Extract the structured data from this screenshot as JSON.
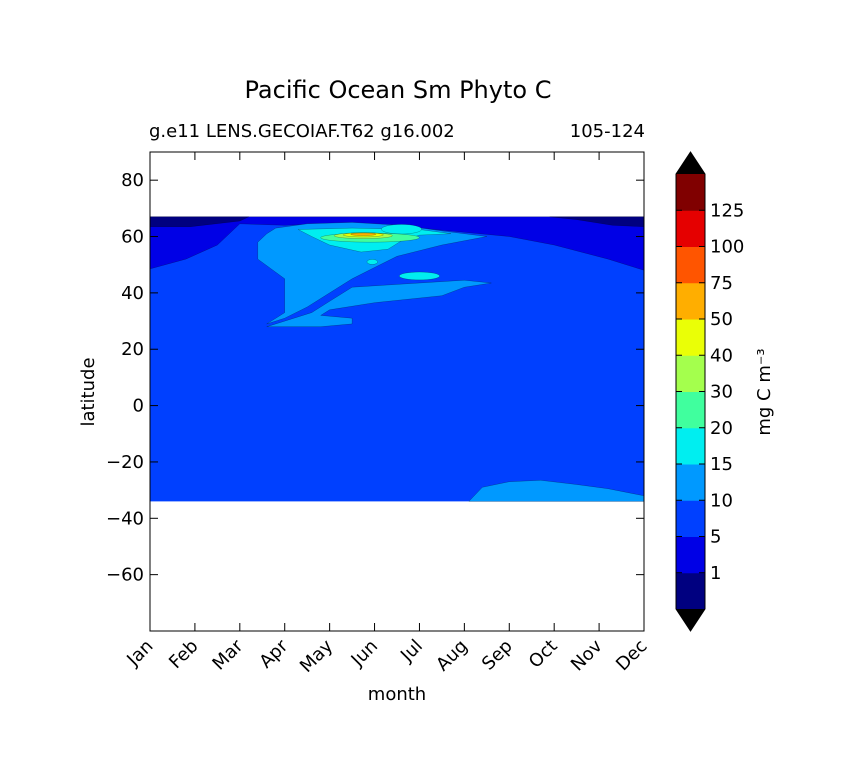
{
  "chart_data": {
    "type": "heatmap",
    "title": "Pacific Ocean Sm Phyto C",
    "subtitle_left": "g.e11 LENS.GECOIAF.T62 g16.002",
    "subtitle_right": "105-124",
    "xlabel": "month",
    "ylabel": "latitude",
    "x_tick_labels": [
      "Jan",
      "Feb",
      "Mar",
      "Apr",
      "May",
      "Jun",
      "Jul",
      "Aug",
      "Sep",
      "Oct",
      "Nov",
      "Dec"
    ],
    "xlim": [
      0,
      11
    ],
    "ylim": [
      -80,
      90
    ],
    "y_ticks": [
      80,
      60,
      40,
      20,
      0,
      -20,
      -40,
      -60
    ],
    "data_lat_range": [
      -34,
      67
    ],
    "colorbar": {
      "label": "mg C m⁻³",
      "levels": [
        0,
        1,
        5,
        10,
        15,
        20,
        30,
        40,
        50,
        75,
        100,
        125,
        150
      ],
      "tick_labels": [
        "1",
        "5",
        "10",
        "15",
        "20",
        "30",
        "40",
        "50",
        "75",
        "100",
        "125"
      ],
      "colors": [
        "#000080",
        "#0000e6",
        "#0040ff",
        "#0099ff",
        "#00eef0",
        "#40ff9e",
        "#a4ff4d",
        "#eaff06",
        "#ffae00",
        "#ff5500",
        "#e50000",
        "#800000"
      ],
      "extend": "both"
    },
    "contour_regions": [
      {
        "level": "<1",
        "desc": "band at 63-67N Jan-Mar and Oct-Dec"
      },
      {
        "level": "1-5",
        "desc": "edge along 48-67N in winter months"
      },
      {
        "level": "5-10",
        "desc": "background field, most of the domain"
      },
      {
        "level": "10-15",
        "desc": "tongue 28-64N from Feb to Aug; patch 26-33S Aug-Dec"
      },
      {
        "level": "15-20",
        "desc": "bloom core near 60N Apr-Jun; blob near 46N late Jun"
      },
      {
        "level": "20-30",
        "desc": "inside bloom core ~61N May"
      },
      {
        "level": "30-40",
        "desc": "inside bloom core ~61N May"
      },
      {
        "level": "40-50",
        "desc": "inside bloom core ~61N May"
      },
      {
        "level": "50-75",
        "desc": "peak ~61N mid May"
      }
    ]
  }
}
